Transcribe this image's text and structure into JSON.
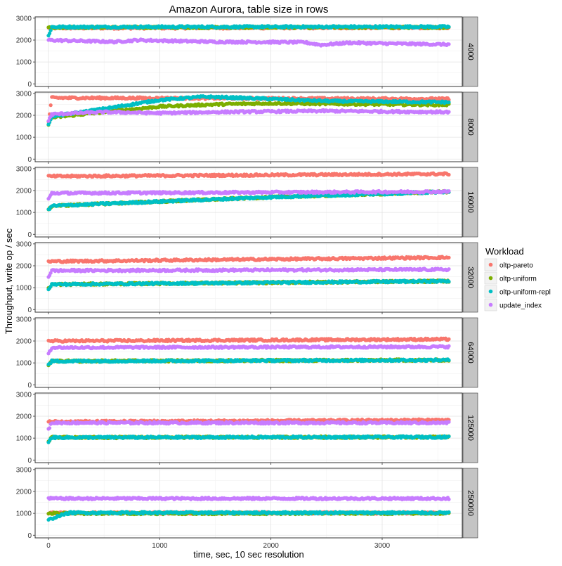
{
  "chart_data": {
    "type": "scatter",
    "title": "Amazon Aurora, table size in rows",
    "xlabel": "time, sec, 10 sec resolution",
    "ylabel": "Throughput, write op / sec",
    "xlim": [
      -120,
      3720
    ],
    "ylim": [
      -120,
      3060
    ],
    "x_ticks": [
      0,
      1000,
      2000,
      3000
    ],
    "x_tick_labels": [
      "0",
      "1000",
      "2000",
      "3000"
    ],
    "y_ticks": [
      0,
      1000,
      2000,
      3000
    ],
    "y_tick_labels": [
      "0",
      "1000",
      "2000",
      "3000"
    ],
    "grid": true,
    "x_range": [
      0,
      3600
    ],
    "x_step": 10,
    "legend": {
      "title": "Workload",
      "position": "right",
      "items": [
        {
          "label": "oltp-pareto",
          "color": "#F8766D"
        },
        {
          "label": "oltp-uniform",
          "color": "#7CAE00"
        },
        {
          "label": "oltp-uniform-repl",
          "color": "#00BFC4"
        },
        {
          "label": "update_index",
          "color": "#C77CFF"
        }
      ]
    },
    "panels": [
      {
        "label": "4000",
        "series": [
          {
            "key": "oltp-pareto",
            "points": [
              [
                0,
                2550
              ],
              [
                3600,
                2570
              ]
            ]
          },
          {
            "key": "oltp-uniform",
            "points": [
              [
                0,
                2580
              ],
              [
                3600,
                2580
              ]
            ]
          },
          {
            "key": "oltp-uniform-repl",
            "points": [
              [
                0,
                2200
              ],
              [
                30,
                2600
              ],
              [
                3600,
                2610
              ]
            ]
          },
          {
            "key": "update_index",
            "points": [
              [
                0,
                2000
              ],
              [
                600,
                1920
              ],
              [
                800,
                2000
              ],
              [
                1500,
                1920
              ],
              [
                2300,
                1900
              ],
              [
                2450,
                1780
              ],
              [
                2700,
                1880
              ],
              [
                3000,
                1850
              ],
              [
                3600,
                1800
              ]
            ]
          }
        ]
      },
      {
        "label": "8000",
        "series": [
          {
            "key": "oltp-pareto",
            "points": [
              [
                0,
                1700
              ],
              [
                30,
                2800
              ],
              [
                3600,
                2750
              ]
            ]
          },
          {
            "key": "oltp-uniform",
            "points": [
              [
                0,
                1600
              ],
              [
                30,
                1900
              ],
              [
                500,
                2150
              ],
              [
                1000,
                2400
              ],
              [
                1500,
                2500
              ],
              [
                2000,
                2550
              ],
              [
                3000,
                2500
              ],
              [
                3600,
                2480
              ]
            ]
          },
          {
            "key": "oltp-uniform-repl",
            "points": [
              [
                0,
                1600
              ],
              [
                30,
                1950
              ],
              [
                500,
                2300
              ],
              [
                1000,
                2700
              ],
              [
                1400,
                2850
              ],
              [
                2000,
                2750
              ],
              [
                2500,
                2650
              ],
              [
                3600,
                2600
              ]
            ]
          },
          {
            "key": "update_index",
            "points": [
              [
                0,
                1750
              ],
              [
                30,
                2050
              ],
              [
                500,
                2150
              ],
              [
                1000,
                2100
              ],
              [
                1500,
                2150
              ],
              [
                2500,
                2200
              ],
              [
                3600,
                2150
              ]
            ]
          }
        ]
      },
      {
        "label": "16000",
        "series": [
          {
            "key": "oltp-pareto",
            "points": [
              [
                0,
                2650
              ],
              [
                3600,
                2760
              ]
            ]
          },
          {
            "key": "oltp-uniform",
            "points": [
              [
                0,
                1100
              ],
              [
                30,
                1300
              ],
              [
                1000,
                1500
              ],
              [
                2000,
                1700
              ],
              [
                3000,
                1850
              ],
              [
                3600,
                1950
              ]
            ]
          },
          {
            "key": "oltp-uniform-repl",
            "points": [
              [
                0,
                1100
              ],
              [
                30,
                1300
              ],
              [
                1000,
                1500
              ],
              [
                2000,
                1700
              ],
              [
                3000,
                1850
              ],
              [
                3600,
                1950
              ]
            ]
          },
          {
            "key": "update_index",
            "points": [
              [
                0,
                1600
              ],
              [
                30,
                1880
              ],
              [
                3600,
                1950
              ]
            ]
          }
        ]
      },
      {
        "label": "32000",
        "series": [
          {
            "key": "oltp-pareto",
            "points": [
              [
                0,
                2200
              ],
              [
                3600,
                2380
              ]
            ]
          },
          {
            "key": "oltp-uniform",
            "points": [
              [
                0,
                950
              ],
              [
                30,
                1150
              ],
              [
                3600,
                1300
              ]
            ]
          },
          {
            "key": "oltp-uniform-repl",
            "points": [
              [
                0,
                950
              ],
              [
                30,
                1150
              ],
              [
                3600,
                1300
              ]
            ]
          },
          {
            "key": "update_index",
            "points": [
              [
                0,
                1500
              ],
              [
                30,
                1780
              ],
              [
                3600,
                1830
              ]
            ]
          }
        ]
      },
      {
        "label": "64000",
        "series": [
          {
            "key": "oltp-pareto",
            "points": [
              [
                0,
                2000
              ],
              [
                3600,
                2080
              ]
            ]
          },
          {
            "key": "oltp-uniform",
            "points": [
              [
                0,
                900
              ],
              [
                30,
                1080
              ],
              [
                3600,
                1130
              ]
            ]
          },
          {
            "key": "oltp-uniform-repl",
            "points": [
              [
                0,
                900
              ],
              [
                30,
                1080
              ],
              [
                3600,
                1130
              ]
            ]
          },
          {
            "key": "update_index",
            "points": [
              [
                0,
                1450
              ],
              [
                30,
                1700
              ],
              [
                3600,
                1740
              ]
            ]
          }
        ]
      },
      {
        "label": "125000",
        "series": [
          {
            "key": "oltp-pareto",
            "points": [
              [
                0,
                1750
              ],
              [
                3600,
                1830
              ]
            ]
          },
          {
            "key": "oltp-uniform",
            "points": [
              [
                0,
                850
              ],
              [
                30,
                1030
              ],
              [
                3600,
                1050
              ]
            ]
          },
          {
            "key": "oltp-uniform-repl",
            "points": [
              [
                0,
                850
              ],
              [
                30,
                1030
              ],
              [
                3600,
                1050
              ]
            ]
          },
          {
            "key": "update_index",
            "points": [
              [
                0,
                1400
              ],
              [
                30,
                1700
              ],
              [
                3600,
                1700
              ]
            ]
          }
        ]
      },
      {
        "label": "250000",
        "series": [
          {
            "key": "oltp-pareto",
            "points": [
              [
                0,
                1020
              ],
              [
                3600,
                1020
              ]
            ]
          },
          {
            "key": "oltp-uniform",
            "points": [
              [
                0,
                1000
              ],
              [
                3600,
                1000
              ]
            ]
          },
          {
            "key": "oltp-uniform-repl",
            "points": [
              [
                0,
                700
              ],
              [
                100,
                900
              ],
              [
                200,
                1030
              ],
              [
                3600,
                1030
              ]
            ]
          },
          {
            "key": "update_index",
            "points": [
              [
                0,
                1680
              ],
              [
                3600,
                1680
              ]
            ]
          }
        ]
      }
    ]
  }
}
